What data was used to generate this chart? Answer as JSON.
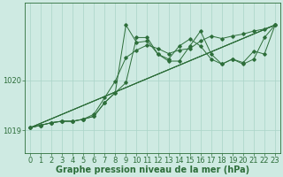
{
  "bg_color": "#ceeae2",
  "grid_color": "#aad4c8",
  "line_color": "#2d6e3a",
  "marker_color": "#2d6e3a",
  "xlabel": "Graphe pression niveau de la mer (hPa)",
  "xlabel_fontsize": 7,
  "tick_fontsize": 6,
  "ylabel_ticks": [
    1019,
    1020
  ],
  "xlim": [
    -0.5,
    23.5
  ],
  "ylim": [
    1018.55,
    1021.55
  ],
  "series": [
    {
      "x": [
        0,
        1,
        2,
        3,
        4,
        5,
        6,
        7,
        8,
        9,
        10,
        11,
        12,
        13,
        14,
        15,
        16,
        17,
        18,
        19,
        20,
        21,
        22,
        23
      ],
      "y": [
        1019.05,
        1019.1,
        1019.15,
        1019.18,
        1019.18,
        1019.22,
        1019.28,
        1019.55,
        1019.75,
        1021.1,
        1020.75,
        1020.78,
        1020.52,
        1020.42,
        1020.68,
        1020.82,
        1020.68,
        1020.42,
        1020.32,
        1020.42,
        1020.32,
        1020.42,
        1020.85,
        1021.1
      ],
      "marker": true
    },
    {
      "x": [
        0,
        1,
        2,
        3,
        4,
        5,
        6,
        7,
        8,
        9,
        10,
        11,
        12,
        13,
        14,
        15,
        16,
        17,
        18,
        19,
        20,
        21,
        22,
        23
      ],
      "y": [
        1019.05,
        1019.1,
        1019.15,
        1019.18,
        1019.18,
        1019.22,
        1019.28,
        1019.55,
        1019.75,
        1019.95,
        1020.85,
        1020.85,
        1020.52,
        1020.38,
        1020.38,
        1020.68,
        1020.98,
        1020.52,
        1020.32,
        1020.42,
        1020.35,
        1020.58,
        1020.52,
        1021.1
      ],
      "marker": true
    },
    {
      "x": [
        0,
        1,
        2,
        3,
        4,
        5,
        6,
        7,
        8,
        9,
        10,
        11,
        12,
        13,
        14,
        15,
        16,
        17,
        18,
        19,
        20,
        21,
        22,
        23
      ],
      "y": [
        1019.05,
        1019.1,
        1019.15,
        1019.18,
        1019.18,
        1019.22,
        1019.32,
        1019.65,
        1019.98,
        1020.45,
        1020.6,
        1020.7,
        1020.63,
        1020.53,
        1020.6,
        1020.63,
        1020.78,
        1020.88,
        1020.83,
        1020.88,
        1020.92,
        1020.98,
        1021.02,
        1021.1
      ],
      "marker": true
    },
    {
      "x": [
        0,
        23
      ],
      "y": [
        1019.05,
        1021.1
      ],
      "marker": false
    },
    {
      "x": [
        0,
        23
      ],
      "y": [
        1019.05,
        1021.1
      ],
      "marker": false
    },
    {
      "x": [
        0,
        23
      ],
      "y": [
        1019.05,
        1021.1
      ],
      "marker": false
    }
  ]
}
